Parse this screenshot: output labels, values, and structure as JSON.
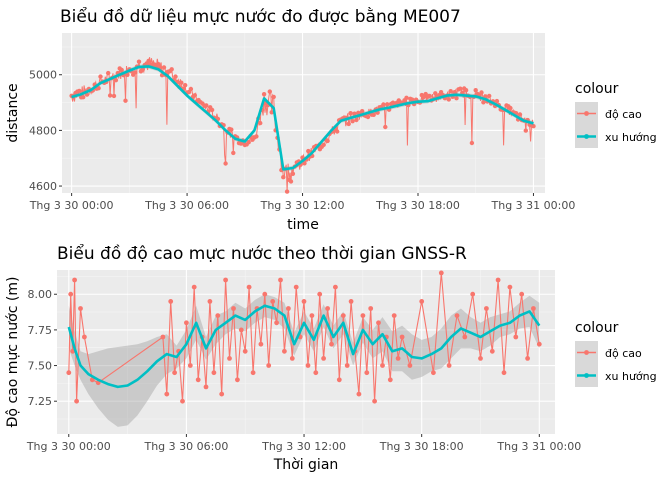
{
  "chart_data": [
    {
      "type": "line",
      "title": "Biểu đồ dữ liệu mực nước đo được bằng ME007",
      "xlabel": "time",
      "ylabel": "distance",
      "x_ticks": [
        "Thg 3 30 00:00",
        "Thg 3 30 06:00",
        "Thg 3 30 12:00",
        "Thg 3 30 18:00",
        "Thg 3 31 00:00"
      ],
      "x_tick_hours": [
        0,
        6,
        12,
        18,
        24
      ],
      "y_ticks": [
        4600,
        4800,
        5000
      ],
      "xlim_hours": [
        -0.5,
        24.6
      ],
      "ylim": [
        4575,
        5150
      ],
      "grid": true,
      "legend_title": "colour",
      "legend_position": "right",
      "colors": {
        "do_cao": "#F8766D",
        "xu_huong": "#00BFC4",
        "panel": "#EBEBEB",
        "ribbon": "#999999"
      },
      "series": [
        {
          "name": "độ cao",
          "x_hours": [
            0,
            0.5,
            1,
            1.5,
            2,
            2.5,
            3,
            3.5,
            4,
            4.5,
            5,
            5.5,
            6,
            6.5,
            7,
            7.5,
            8,
            8.5,
            9,
            9.5,
            10,
            10.5,
            11,
            11.5,
            12,
            12.5,
            13,
            13.5,
            14,
            14.5,
            15,
            15.5,
            16,
            16.5,
            17,
            17.5,
            18,
            18.5,
            19,
            19.5,
            20,
            20.5,
            21,
            21.5,
            22,
            22.5,
            23,
            23.5,
            24
          ],
          "values": [
            4925,
            4935,
            4950,
            4975,
            4990,
            5005,
            5020,
            5035,
            5040,
            5030,
            5010,
            4985,
            4945,
            4910,
            4880,
            4845,
            4805,
            4775,
            4760,
            4770,
            4910,
            4880,
            4650,
            4665,
            4690,
            4720,
            4755,
            4790,
            4830,
            4845,
            4855,
            4865,
            4875,
            4885,
            4895,
            4905,
            4910,
            4915,
            4920,
            4925,
            4935,
            4935,
            4930,
            4915,
            4900,
            4880,
            4860,
            4835,
            4825
          ],
          "spread": [
            60,
            50,
            45,
            40,
            45,
            45,
            50,
            55,
            60,
            55,
            50,
            45,
            40,
            40,
            40,
            40,
            35,
            30,
            30,
            40,
            90,
            110,
            70,
            55,
            45,
            40,
            40,
            45,
            50,
            40,
            30,
            30,
            30,
            30,
            30,
            30,
            30,
            35,
            35,
            35,
            40,
            35,
            35,
            35,
            30,
            30,
            30,
            30,
            25
          ]
        },
        {
          "name": "xu hướng",
          "x_hours": [
            0,
            0.5,
            1,
            1.5,
            2,
            2.5,
            3,
            3.5,
            4,
            4.5,
            5,
            5.5,
            6,
            6.5,
            7,
            7.5,
            8,
            8.5,
            9,
            9.5,
            10,
            10.5,
            11,
            11.5,
            12,
            12.5,
            13,
            13.5,
            14,
            14.5,
            15,
            15.5,
            16,
            16.5,
            17,
            17.5,
            18,
            18.5,
            19,
            19.5,
            20,
            20.5,
            21,
            21.5,
            22,
            22.5,
            23,
            23.5,
            24
          ],
          "values": [
            4920,
            4930,
            4945,
            4970,
            4985,
            5000,
            5015,
            5028,
            5030,
            5020,
            4995,
            4960,
            4925,
            4895,
            4865,
            4835,
            4800,
            4770,
            4760,
            4800,
            4915,
            4880,
            4660,
            4665,
            4690,
            4720,
            4760,
            4800,
            4835,
            4845,
            4855,
            4865,
            4875,
            4882,
            4890,
            4898,
            4903,
            4905,
            4915,
            4925,
            4928,
            4925,
            4922,
            4912,
            4895,
            4875,
            4855,
            4835,
            4825
          ]
        }
      ]
    },
    {
      "type": "line",
      "title": "Biểu đồ độ cao mực nước theo thời gian GNSS-R",
      "xlabel": "Thời gian",
      "ylabel": "Độ cao mực nước (m)",
      "x_ticks": [
        "Thg 3 30 00:00",
        "Thg 3 30 06:00",
        "Thg 3 30 12:00",
        "Thg 3 30 18:00",
        "Thg 3 31 00:00"
      ],
      "x_tick_hours": [
        0,
        6,
        12,
        18,
        24
      ],
      "y_ticks": [
        7.25,
        7.5,
        7.75,
        8.0
      ],
      "xlim_hours": [
        -0.6,
        24.8
      ],
      "ylim": [
        7.02,
        8.17
      ],
      "grid": true,
      "legend_title": "colour",
      "legend_position": "right",
      "series": [
        {
          "name": "độ cao",
          "x_hours": [
            0,
            0.1,
            0.2,
            0.3,
            0.4,
            0.6,
            0.8,
            1.2,
            1.5,
            4.8,
            5.0,
            5.2,
            5.4,
            5.6,
            5.8,
            6.0,
            6.2,
            6.4,
            6.6,
            6.8,
            7.0,
            7.2,
            7.4,
            7.6,
            7.8,
            8.0,
            8.2,
            8.4,
            8.6,
            8.8,
            9.0,
            9.2,
            9.4,
            9.6,
            9.8,
            10.0,
            10.2,
            10.4,
            10.6,
            10.8,
            11.0,
            11.2,
            11.4,
            11.6,
            11.8,
            12.0,
            12.2,
            12.4,
            12.6,
            12.8,
            13.0,
            13.2,
            13.4,
            13.6,
            13.8,
            14.0,
            14.2,
            14.4,
            14.6,
            14.8,
            15.0,
            15.2,
            15.4,
            15.6,
            15.8,
            16.0,
            16.2,
            16.4,
            16.6,
            16.8,
            17.0,
            17.4,
            18.0,
            18.6,
            19.0,
            19.4,
            19.8,
            20.2,
            20.6,
            21.0,
            21.3,
            21.6,
            21.9,
            22.2,
            22.5,
            22.8,
            23.1,
            23.4,
            23.7,
            24.0
          ],
          "values": [
            7.45,
            8.0,
            7.6,
            8.1,
            7.25,
            7.9,
            7.7,
            7.4,
            7.38,
            7.7,
            7.3,
            7.95,
            7.45,
            7.6,
            7.25,
            7.8,
            7.5,
            8.05,
            7.4,
            7.7,
            7.35,
            7.95,
            7.45,
            7.85,
            7.3,
            8.1,
            7.55,
            7.9,
            7.4,
            7.75,
            7.6,
            8.05,
            7.45,
            7.9,
            7.65,
            8.0,
            7.5,
            7.95,
            7.8,
            8.1,
            7.6,
            7.9,
            7.55,
            8.05,
            7.7,
            7.95,
            7.5,
            7.85,
            7.45,
            8.0,
            7.55,
            7.9,
            7.65,
            8.05,
            7.4,
            7.85,
            7.5,
            7.95,
            7.6,
            7.3,
            7.85,
            7.45,
            7.9,
            7.25,
            7.8,
            7.5,
            7.7,
            7.4,
            7.85,
            7.55,
            7.7,
            7.5,
            7.95,
            7.45,
            8.15,
            7.5,
            7.85,
            7.7,
            8.0,
            7.55,
            7.9,
            7.6,
            8.1,
            7.45,
            8.05,
            7.7,
            8.0,
            7.55,
            7.9,
            7.65
          ]
        },
        {
          "name": "xu hướng",
          "x_hours": [
            0,
            0.3,
            0.6,
            1.0,
            1.5,
            2.0,
            2.5,
            3.0,
            3.5,
            4.0,
            4.5,
            5.0,
            5.5,
            6.0,
            6.5,
            7.0,
            7.5,
            8.0,
            8.5,
            9.0,
            9.5,
            10.0,
            10.5,
            11.0,
            11.5,
            12.0,
            12.5,
            13.0,
            13.5,
            14.0,
            14.5,
            15.0,
            15.5,
            16.0,
            16.5,
            17.0,
            17.5,
            18.0,
            18.5,
            19.0,
            19.5,
            20.0,
            20.5,
            21.0,
            21.5,
            22.0,
            22.5,
            23.0,
            23.5,
            24.0
          ],
          "values": [
            7.77,
            7.62,
            7.5,
            7.44,
            7.4,
            7.37,
            7.35,
            7.36,
            7.4,
            7.46,
            7.53,
            7.58,
            7.56,
            7.65,
            7.8,
            7.62,
            7.75,
            7.8,
            7.85,
            7.82,
            7.88,
            7.92,
            7.9,
            7.85,
            7.65,
            7.8,
            7.68,
            7.85,
            7.7,
            7.8,
            7.58,
            7.75,
            7.65,
            7.72,
            7.6,
            7.62,
            7.56,
            7.55,
            7.58,
            7.62,
            7.7,
            7.76,
            7.73,
            7.7,
            7.74,
            7.78,
            7.8,
            7.85,
            7.88,
            7.78
          ],
          "band_lower": [
            7.62,
            7.5,
            7.4,
            7.3,
            7.2,
            7.12,
            7.07,
            7.08,
            7.15,
            7.25,
            7.36,
            7.44,
            7.48,
            7.55,
            7.68,
            7.54,
            7.65,
            7.72,
            7.76,
            7.74,
            7.8,
            7.84,
            7.82,
            7.76,
            7.57,
            7.72,
            7.6,
            7.77,
            7.62,
            7.72,
            7.5,
            7.66,
            7.55,
            7.6,
            7.46,
            7.46,
            7.4,
            7.42,
            7.46,
            7.48,
            7.55,
            7.62,
            7.62,
            7.6,
            7.64,
            7.7,
            7.72,
            7.76,
            7.77,
            7.62
          ],
          "band_upper": [
            7.92,
            7.74,
            7.6,
            7.58,
            7.6,
            7.62,
            7.63,
            7.64,
            7.65,
            7.67,
            7.7,
            7.72,
            7.64,
            7.75,
            7.92,
            7.7,
            7.85,
            7.88,
            7.94,
            7.9,
            7.96,
            8.0,
            7.98,
            7.94,
            7.73,
            7.88,
            7.76,
            7.93,
            7.78,
            7.88,
            7.66,
            7.84,
            7.75,
            7.84,
            7.74,
            7.78,
            7.72,
            7.68,
            7.7,
            7.76,
            7.85,
            7.9,
            7.84,
            7.8,
            7.84,
            7.86,
            7.88,
            7.94,
            7.99,
            7.94
          ]
        }
      ]
    }
  ]
}
